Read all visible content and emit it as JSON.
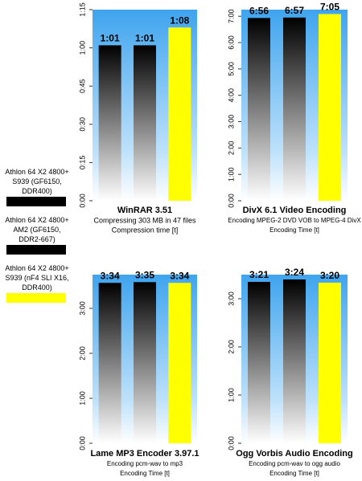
{
  "legend": [
    {
      "name": "Athlon 64 X2 4800+ S939 (GF6150, DDR400)",
      "color": "#000000"
    },
    {
      "name": "Athlon 64 X2 4800+ AM2 (GF6150, DDR2-667)",
      "color": "#000000"
    },
    {
      "name": "Athlon 64 X2 4800+ S939 (nF4 SLI X16, DDR400)",
      "color": "#ffff00"
    }
  ],
  "chart_data": [
    {
      "type": "bar",
      "title": "WinRAR 3.51",
      "subtitle": [
        "Compressing 303 MB in 47 files",
        "Compression time [t]"
      ],
      "categories": [
        null,
        null,
        null
      ],
      "values": [
        61,
        61,
        68
      ],
      "value_labels": [
        "1:01",
        "1:01",
        "1:08"
      ],
      "ylim": [
        0,
        75
      ],
      "yticks": [
        {
          "value": 0,
          "label": "0:00"
        },
        {
          "value": 15,
          "label": "0:15"
        },
        {
          "value": 30,
          "label": "0:30"
        },
        {
          "value": 45,
          "label": "0:45"
        },
        {
          "value": 60,
          "label": "1:00"
        },
        {
          "value": 75,
          "label": "1:15"
        }
      ]
    },
    {
      "type": "bar",
      "title": "DivX 6.1 Video Encoding",
      "subtitle": [
        "Encoding MPEG-2 DVD VOB to MPEG-4 DivX",
        "Encoding Time [t]"
      ],
      "categories": [
        null,
        null,
        null
      ],
      "values": [
        416,
        417,
        425
      ],
      "value_labels": [
        "6:56",
        "6:57",
        "7:05"
      ],
      "ylim": [
        0,
        435
      ],
      "yticks": [
        {
          "value": 0,
          "label": "0:00"
        },
        {
          "value": 60,
          "label": "1:00"
        },
        {
          "value": 120,
          "label": "2:00"
        },
        {
          "value": 180,
          "label": "3:00"
        },
        {
          "value": 240,
          "label": "4:00"
        },
        {
          "value": 300,
          "label": "5:00"
        },
        {
          "value": 360,
          "label": "6:00"
        },
        {
          "value": 420,
          "label": "7:00"
        }
      ]
    },
    {
      "type": "bar",
      "title": "Lame MP3 Encoder 3.97.1",
      "subtitle": [
        "Encoding pcm-wav to mp3",
        "Encoding Time [t]"
      ],
      "categories": [
        null,
        null,
        null
      ],
      "values": [
        214,
        215,
        214
      ],
      "value_labels": [
        "3:34",
        "3:35",
        "3:34"
      ],
      "ylim": [
        0,
        225
      ],
      "yticks": [
        {
          "value": 0,
          "label": "0:00"
        },
        {
          "value": 60,
          "label": "1:00"
        },
        {
          "value": 120,
          "label": "2:00"
        },
        {
          "value": 180,
          "label": "3:00"
        }
      ]
    },
    {
      "type": "bar",
      "title": "Ogg Vorbis Audio Encoding",
      "subtitle": [
        "Encoding pcm-wav to ogg audio",
        "Encoding Time [t]"
      ],
      "categories": [
        null,
        null,
        null
      ],
      "values": [
        201,
        204,
        200
      ],
      "value_labels": [
        "3:21",
        "3:24",
        "3:20"
      ],
      "ylim": [
        0,
        210
      ],
      "yticks": [
        {
          "value": 0,
          "label": "0:00"
        },
        {
          "value": 60,
          "label": "1:00"
        },
        {
          "value": 120,
          "label": "2:00"
        },
        {
          "value": 180,
          "label": "3:00"
        }
      ]
    }
  ]
}
